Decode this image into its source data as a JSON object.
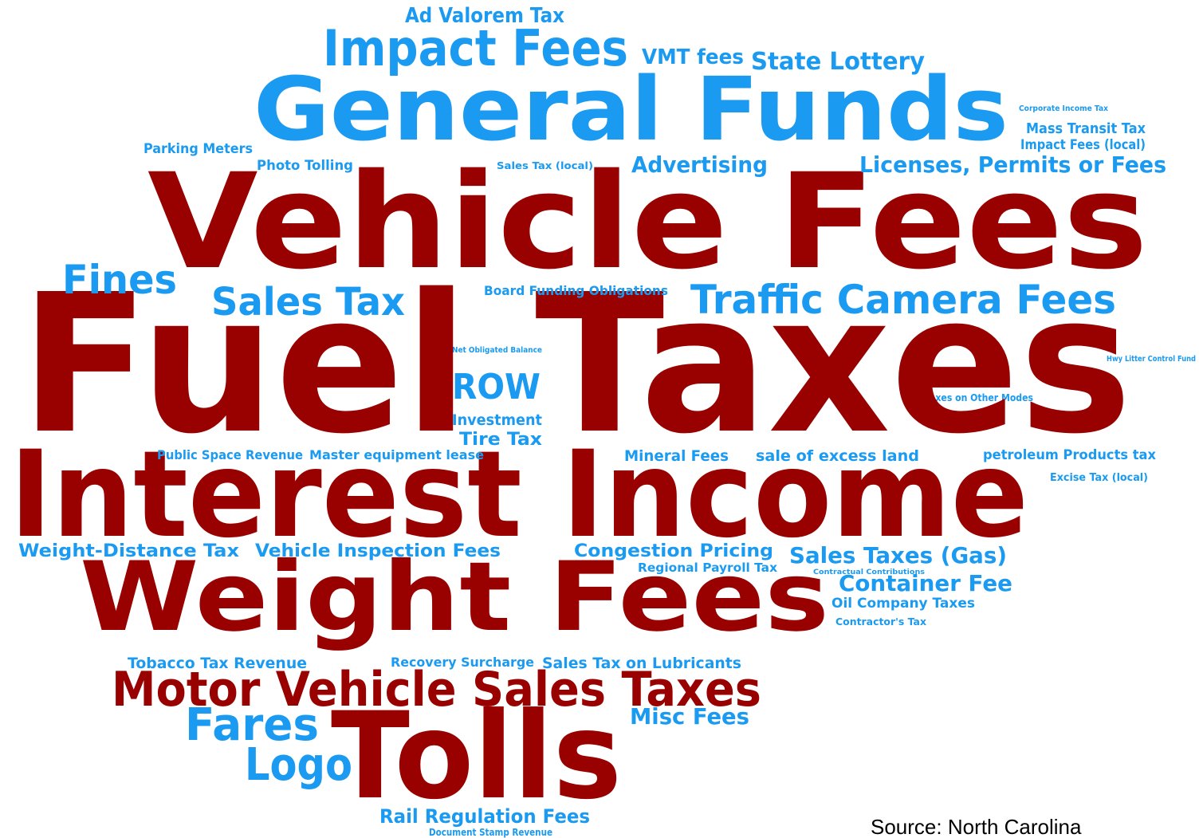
{
  "words": [
    {
      "text": "Ad Valorem Tax",
      "color": "#1a9af0"
    },
    {
      "text": "Impact Fees",
      "color": "#1a9af0"
    },
    {
      "text": "VMT fees",
      "color": "#1a9af0"
    },
    {
      "text": "State Lottery",
      "color": "#1a9af0"
    },
    {
      "text": "General Funds",
      "color": "#1a9af0"
    },
    {
      "text": "Corporate Income Tax",
      "color": "#1a9af0"
    },
    {
      "text": "Mass Transit Tax",
      "color": "#1a9af0"
    },
    {
      "text": "Impact Fees (local)",
      "color": "#1a9af0"
    },
    {
      "text": "Parking Meters",
      "color": "#1a9af0"
    },
    {
      "text": "Photo Tolling",
      "color": "#1a9af0"
    },
    {
      "text": "Sales Tax (local)",
      "color": "#1a9af0"
    },
    {
      "text": "Advertising",
      "color": "#1a9af0"
    },
    {
      "text": "Licenses, Permits or Fees",
      "color": "#1a9af0"
    },
    {
      "text": "Vehicle Fees",
      "color": "#990000"
    },
    {
      "text": "Fines",
      "color": "#1a9af0"
    },
    {
      "text": "Sales Tax",
      "color": "#1a9af0"
    },
    {
      "text": "Board Funding Obligations",
      "color": "#1a9af0"
    },
    {
      "text": "Traffic Camera Fees",
      "color": "#1a9af0"
    },
    {
      "text": "Fuel Taxes",
      "color": "#990000"
    },
    {
      "text": "Net Obligated Balance",
      "color": "#1a9af0"
    },
    {
      "text": "Hwy Litter Control Fund",
      "color": "#1a9af0"
    },
    {
      "text": "ROW",
      "color": "#1a9af0"
    },
    {
      "text": "Taxes on Other Modes",
      "color": "#1a9af0"
    },
    {
      "text": "Investment",
      "color": "#1a9af0"
    },
    {
      "text": "Tire Tax",
      "color": "#1a9af0"
    },
    {
      "text": "Public Space Revenue",
      "color": "#1a9af0"
    },
    {
      "text": "Master equipment lease",
      "color": "#1a9af0"
    },
    {
      "text": "Mineral Fees",
      "color": "#1a9af0"
    },
    {
      "text": "sale of excess land",
      "color": "#1a9af0"
    },
    {
      "text": "petroleum Products tax",
      "color": "#1a9af0"
    },
    {
      "text": "Excise Tax (local)",
      "color": "#1a9af0"
    },
    {
      "text": "Interest Income",
      "color": "#990000"
    },
    {
      "text": "Weight-Distance Tax",
      "color": "#1a9af0"
    },
    {
      "text": "Vehicle Inspection Fees",
      "color": "#1a9af0"
    },
    {
      "text": "Congestion Pricing",
      "color": "#1a9af0"
    },
    {
      "text": "Sales Taxes (Gas)",
      "color": "#1a9af0"
    },
    {
      "text": "Regional Payroll Tax",
      "color": "#1a9af0"
    },
    {
      "text": "Contractual Contributions",
      "color": "#1a9af0"
    },
    {
      "text": "Container Fee",
      "color": "#1a9af0"
    },
    {
      "text": "Weight Fees",
      "color": "#990000"
    },
    {
      "text": "Oil Company Taxes",
      "color": "#1a9af0"
    },
    {
      "text": "Contractor's Tax",
      "color": "#1a9af0"
    },
    {
      "text": "Tobacco Tax Revenue",
      "color": "#1a9af0"
    },
    {
      "text": "Recovery Surcharge",
      "color": "#1a9af0"
    },
    {
      "text": "Sales Tax on Lubricants",
      "color": "#1a9af0"
    },
    {
      "text": "Motor Vehicle Sales Taxes",
      "color": "#990000"
    },
    {
      "text": "Fares",
      "color": "#1a9af0"
    },
    {
      "text": "Misc Fees",
      "color": "#1a9af0"
    },
    {
      "text": "Tolls",
      "color": "#990000"
    },
    {
      "text": "Logo",
      "color": "#1a9af0"
    },
    {
      "text": "Rail Regulation Fees",
      "color": "#1a9af0"
    },
    {
      "text": "Document Stamp Revenue",
      "color": "#1a9af0"
    }
  ],
  "source": "Source: North Carolina"
}
